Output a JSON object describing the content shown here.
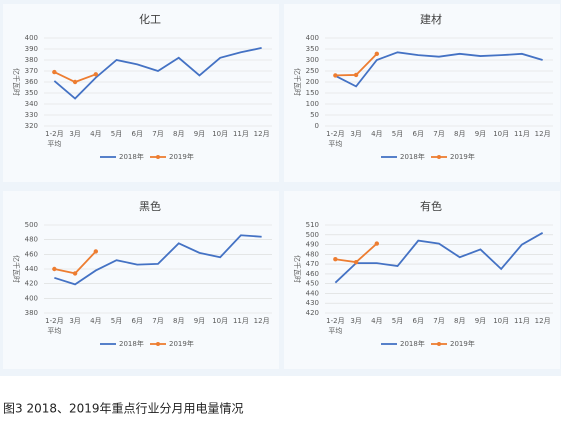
{
  "chart_data": [
    {
      "type": "line",
      "title": "化工",
      "ylabel": "亿千瓦时",
      "categories": [
        "1-2月\n平均",
        "3月",
        "4月",
        "5月",
        "6月",
        "7月",
        "8月",
        "9月",
        "10月",
        "11月",
        "12月"
      ],
      "series": [
        {
          "name": "2018年",
          "color": "#4472c4",
          "values": [
            361,
            345,
            364,
            380,
            376,
            370,
            382,
            366,
            382,
            387,
            391
          ]
        },
        {
          "name": "2019年",
          "color": "#ed7d31",
          "values": [
            369,
            360,
            367,
            null,
            null,
            null,
            null,
            null,
            null,
            null,
            null
          ]
        }
      ],
      "ylim": [
        320,
        400
      ],
      "yticks": [
        320,
        330,
        340,
        350,
        360,
        370,
        380,
        390,
        400
      ],
      "grid": true
    },
    {
      "type": "line",
      "title": "建材",
      "ylabel": "亿千瓦时",
      "categories": [
        "1-2月\n平均",
        "3月",
        "4月",
        "5月",
        "6月",
        "7月",
        "8月",
        "9月",
        "10月",
        "11月",
        "12月"
      ],
      "series": [
        {
          "name": "2018年",
          "color": "#4472c4",
          "values": [
            228,
            180,
            300,
            335,
            322,
            315,
            328,
            318,
            322,
            328,
            300
          ]
        },
        {
          "name": "2019年",
          "color": "#ed7d31",
          "values": [
            230,
            232,
            328,
            null,
            null,
            null,
            null,
            null,
            null,
            null,
            null
          ]
        }
      ],
      "ylim": [
        0,
        400
      ],
      "yticks": [
        0,
        50,
        100,
        150,
        200,
        250,
        300,
        350,
        400
      ],
      "grid": true
    },
    {
      "type": "line",
      "title": "黑色",
      "ylabel": "亿千瓦时",
      "categories": [
        "1-2月\n平均",
        "3月",
        "4月",
        "5月",
        "6月",
        "7月",
        "8月",
        "9月",
        "10月",
        "11月",
        "12月"
      ],
      "series": [
        {
          "name": "2018年",
          "color": "#4472c4",
          "values": [
            428,
            419,
            438,
            452,
            446,
            447,
            475,
            462,
            456,
            486,
            484
          ]
        },
        {
          "name": "2019年",
          "color": "#ed7d31",
          "values": [
            440,
            434,
            464,
            null,
            null,
            null,
            null,
            null,
            null,
            null,
            null
          ]
        }
      ],
      "ylim": [
        380,
        500
      ],
      "yticks": [
        380,
        400,
        420,
        440,
        460,
        480,
        500
      ],
      "grid": true
    },
    {
      "type": "line",
      "title": "有色",
      "ylabel": "亿千瓦时",
      "categories": [
        "1-2月\n平均",
        "3月",
        "4月",
        "5月",
        "6月",
        "7月",
        "8月",
        "9月",
        "10月",
        "11月",
        "12月"
      ],
      "series": [
        {
          "name": "2018年",
          "color": "#4472c4",
          "values": [
            451,
            471,
            471,
            468,
            494,
            491,
            477,
            485,
            465,
            490,
            502
          ]
        },
        {
          "name": "2019年",
          "color": "#ed7d31",
          "values": [
            475,
            472,
            491,
            null,
            null,
            null,
            null,
            null,
            null,
            null,
            null
          ]
        }
      ],
      "ylim": [
        420,
        510
      ],
      "yticks": [
        420,
        430,
        440,
        450,
        460,
        470,
        480,
        490,
        500,
        510
      ],
      "grid": true
    }
  ],
  "caption": "图3 2018、2019年重点行业分月用电量情况"
}
